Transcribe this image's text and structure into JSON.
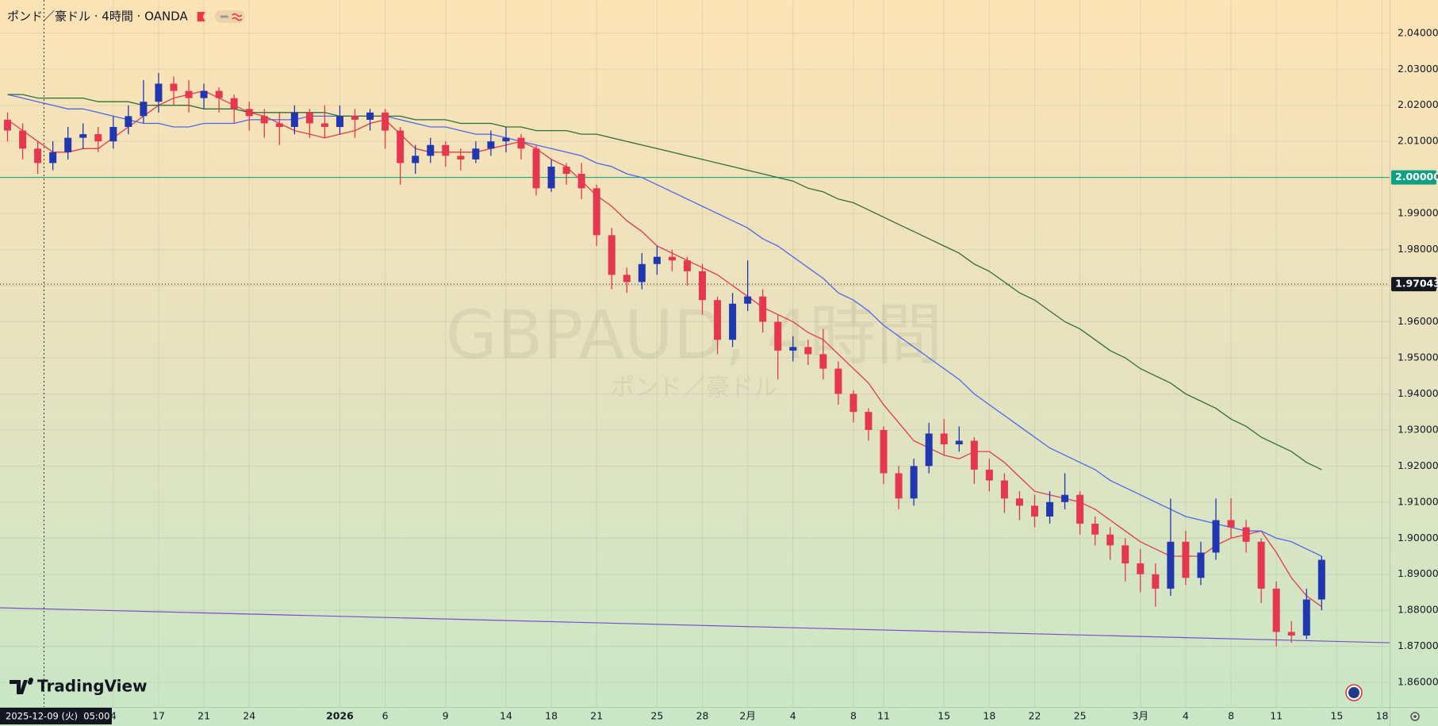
{
  "chart_data": {
    "type": "candlestick",
    "title": "ポンド／豪ドル · 4時間 · OANDA",
    "watermark": "GBPAUD, 4時間",
    "watermark_subtitle": "ポンド／豪ドル",
    "logo": "TradingView",
    "crosshair_label": "2025-12-09 (火)  05:00",
    "up_color": "#2137b0",
    "down_color": "#e5384f",
    "ylim": [
      1.8532,
      2.0492
    ],
    "yticks": [
      {
        "value": 1.86,
        "label": "1.86000"
      },
      {
        "value": 1.87,
        "label": "1.87000"
      },
      {
        "value": 1.88,
        "label": "1.88000"
      },
      {
        "value": 1.89,
        "label": "1.89000"
      },
      {
        "value": 1.9,
        "label": "1.90000"
      },
      {
        "value": 1.91,
        "label": "1.91000"
      },
      {
        "value": 1.92,
        "label": "1.92000"
      },
      {
        "value": 1.93,
        "label": "1.93000"
      },
      {
        "value": 1.94,
        "label": "1.94000"
      },
      {
        "value": 1.95,
        "label": "1.95000"
      },
      {
        "value": 1.96,
        "label": "1.96000"
      },
      {
        "value": 1.97,
        "label": "1.97000"
      },
      {
        "value": 1.98,
        "label": "1.98000"
      },
      {
        "value": 1.99,
        "label": "1.99000"
      },
      {
        "value": 2.0,
        "label": "2.00000"
      },
      {
        "value": 2.01,
        "label": "2.01000"
      },
      {
        "value": 2.02,
        "label": "2.02000"
      },
      {
        "value": 2.03,
        "label": "2.03000"
      },
      {
        "value": 2.04,
        "label": "2.04000"
      }
    ],
    "grid": true,
    "categories": [
      null,
      null,
      null,
      null,
      null,
      null,
      null,
      "4",
      null,
      null,
      "17",
      null,
      null,
      "21",
      null,
      null,
      "24",
      null,
      null,
      null,
      null,
      null,
      "2026",
      null,
      null,
      "6",
      null,
      null,
      null,
      "9",
      null,
      null,
      null,
      "14",
      null,
      null,
      "18",
      null,
      null,
      "21",
      null,
      null,
      null,
      "25",
      null,
      null,
      "28",
      null,
      null,
      "2月",
      null,
      null,
      "4",
      null,
      null,
      null,
      "8",
      null,
      "11",
      null,
      null,
      null,
      "15",
      null,
      null,
      "18",
      null,
      null,
      "22",
      null,
      null,
      "25",
      null,
      null,
      null,
      "3月",
      null,
      null,
      "4",
      null,
      null,
      "8",
      null,
      null,
      "11",
      null,
      null,
      null,
      "15",
      null,
      null,
      "18"
    ],
    "open": [
      2.016,
      2.013,
      2.008,
      2.004,
      2.007,
      2.011,
      2.012,
      2.01,
      2.014,
      2.017,
      2.021,
      2.026,
      2.024,
      2.022,
      2.024,
      2.022,
      2.019,
      2.017,
      2.015,
      2.014,
      2.018,
      2.015,
      2.014,
      2.017,
      2.016,
      2.018,
      2.013,
      2.004,
      2.006,
      2.009,
      2.006,
      2.005,
      2.008,
      2.01,
      2.011,
      2.008,
      1.997,
      2.003,
      2.001,
      1.997,
      1.984,
      1.973,
      1.971,
      1.976,
      1.978,
      1.977,
      1.974,
      1.966,
      1.955,
      1.965,
      1.967,
      1.96,
      1.952,
      1.953,
      1.951,
      1.947,
      1.94,
      1.935,
      1.93,
      1.918,
      1.911,
      1.92,
      1.929,
      1.926,
      1.927,
      1.919,
      1.916,
      1.911,
      1.909,
      1.906,
      1.91,
      1.912,
      1.904,
      1.901,
      1.898,
      1.893,
      1.89,
      1.886,
      1.899,
      1.889,
      1.896,
      1.905,
      1.903,
      1.899,
      1.886,
      1.874,
      1.873,
      1.883,
      null,
      null,
      null,
      null
    ],
    "high": [
      2.018,
      2.015,
      2.01,
      2.01,
      2.014,
      2.015,
      2.014,
      2.017,
      2.02,
      2.027,
      2.029,
      2.028,
      2.027,
      2.026,
      2.025,
      2.023,
      2.021,
      2.019,
      2.018,
      2.02,
      2.019,
      2.02,
      2.02,
      2.019,
      2.019,
      2.019,
      2.014,
      2.009,
      2.011,
      2.01,
      2.008,
      2.01,
      2.013,
      2.014,
      2.012,
      2.009,
      2.005,
      2.004,
      2.004,
      1.998,
      1.986,
      1.975,
      1.979,
      1.981,
      1.98,
      1.978,
      1.976,
      1.967,
      1.968,
      1.977,
      1.969,
      1.962,
      1.956,
      1.955,
      1.958,
      1.949,
      1.941,
      1.936,
      1.931,
      1.92,
      1.922,
      1.932,
      1.933,
      1.931,
      1.928,
      1.922,
      1.918,
      1.913,
      1.912,
      1.913,
      1.918,
      1.913,
      1.906,
      1.903,
      1.9,
      1.897,
      1.893,
      1.911,
      1.902,
      1.899,
      1.911,
      1.911,
      1.905,
      1.9,
      1.888,
      1.877,
      1.886,
      1.895,
      null,
      null,
      null,
      null
    ],
    "low": [
      2.01,
      2.005,
      2.001,
      2.002,
      2.005,
      2.008,
      2.007,
      2.008,
      2.012,
      2.015,
      2.018,
      2.02,
      2.018,
      2.019,
      2.018,
      2.015,
      2.013,
      2.011,
      2.009,
      2.012,
      2.011,
      2.011,
      2.012,
      2.011,
      2.013,
      2.008,
      1.998,
      2.001,
      2.004,
      2.003,
      2.002,
      2.004,
      2.006,
      2.007,
      2.005,
      1.995,
      1.996,
      1.998,
      1.994,
      1.981,
      1.969,
      1.968,
      1.969,
      1.973,
      1.974,
      1.97,
      1.962,
      1.951,
      1.953,
      1.963,
      1.957,
      1.944,
      1.949,
      1.948,
      1.944,
      1.937,
      1.932,
      1.927,
      1.915,
      1.908,
      1.909,
      1.918,
      1.923,
      1.924,
      1.915,
      1.913,
      1.907,
      1.905,
      1.903,
      1.904,
      1.908,
      1.901,
      1.898,
      1.894,
      1.888,
      1.885,
      1.881,
      1.884,
      1.887,
      1.887,
      1.894,
      1.9,
      1.896,
      1.882,
      1.87,
      1.871,
      1.872,
      1.88,
      null,
      null,
      null,
      null
    ],
    "close": [
      2.013,
      2.008,
      2.004,
      2.007,
      2.011,
      2.012,
      2.01,
      2.014,
      2.017,
      2.021,
      2.026,
      2.024,
      2.022,
      2.024,
      2.022,
      2.019,
      2.017,
      2.015,
      2.014,
      2.018,
      2.015,
      2.014,
      2.017,
      2.016,
      2.018,
      2.013,
      2.004,
      2.006,
      2.009,
      2.006,
      2.005,
      2.008,
      2.01,
      2.011,
      2.008,
      1.997,
      2.003,
      2.001,
      1.997,
      1.984,
      1.973,
      1.971,
      1.976,
      1.978,
      1.977,
      1.974,
      1.966,
      1.955,
      1.965,
      1.967,
      1.96,
      1.952,
      1.953,
      1.951,
      1.947,
      1.94,
      1.935,
      1.93,
      1.918,
      1.911,
      1.92,
      1.929,
      1.926,
      1.927,
      1.919,
      1.916,
      1.911,
      1.909,
      1.906,
      1.91,
      1.912,
      1.904,
      1.901,
      1.898,
      1.893,
      1.89,
      1.886,
      1.899,
      1.889,
      1.896,
      1.905,
      1.903,
      1.899,
      1.886,
      1.874,
      1.873,
      1.883,
      1.894,
      null,
      null,
      null,
      null
    ],
    "series": [
      {
        "color": "#e53950",
        "values": [
          2.016,
          2.013,
          2.01,
          2.007,
          2.007,
          2.008,
          2.008,
          2.011,
          2.014,
          2.017,
          2.02,
          2.022,
          2.023,
          2.024,
          2.022,
          2.02,
          2.018,
          2.017,
          2.015,
          2.013,
          2.012,
          2.011,
          2.012,
          2.013,
          2.015,
          2.016,
          2.012,
          2.008,
          2.007,
          2.007,
          2.007,
          2.007,
          2.008,
          2.009,
          2.01,
          2.008,
          2.005,
          2.003,
          1.999,
          1.995,
          1.992,
          1.988,
          1.985,
          1.981,
          1.979,
          1.977,
          1.975,
          1.973,
          1.97,
          1.967,
          1.964,
          1.962,
          1.96,
          1.957,
          1.955,
          1.951,
          1.947,
          1.943,
          1.937,
          1.932,
          1.927,
          1.925,
          1.923,
          1.922,
          1.924,
          1.924,
          1.921,
          1.917,
          1.913,
          1.912,
          1.911,
          1.91,
          1.908,
          1.905,
          1.902,
          1.899,
          1.897,
          1.895,
          1.895,
          1.895,
          1.898,
          1.9,
          1.901,
          1.902,
          1.896,
          1.889,
          1.884,
          1.881,
          null,
          null,
          null,
          null
        ]
      },
      {
        "color": "#4a67f0",
        "values": [
          2.023,
          2.022,
          2.021,
          2.02,
          2.019,
          2.019,
          2.018,
          2.017,
          2.016,
          2.015,
          2.015,
          2.014,
          2.014,
          2.015,
          2.015,
          2.015,
          2.016,
          2.016,
          2.016,
          2.016,
          2.017,
          2.017,
          2.017,
          2.017,
          2.017,
          2.017,
          2.016,
          2.015,
          2.014,
          2.014,
          2.013,
          2.012,
          2.012,
          2.011,
          2.01,
          2.009,
          2.008,
          2.007,
          2.006,
          2.004,
          2.003,
          2.001,
          2.0,
          1.998,
          1.996,
          1.994,
          1.992,
          1.99,
          1.988,
          1.986,
          1.983,
          1.981,
          1.978,
          1.975,
          1.972,
          1.968,
          1.966,
          1.963,
          1.959,
          1.956,
          1.953,
          1.95,
          1.947,
          1.944,
          1.94,
          1.937,
          1.934,
          1.931,
          1.928,
          1.925,
          1.923,
          1.921,
          1.919,
          1.916,
          1.914,
          1.912,
          1.91,
          1.908,
          1.906,
          1.905,
          1.904,
          1.903,
          1.902,
          1.902,
          1.9,
          1.899,
          1.897,
          1.895,
          null,
          null,
          null,
          null
        ]
      },
      {
        "color": "#2f6e36",
        "values": [
          2.023,
          2.023,
          2.022,
          2.022,
          2.022,
          2.022,
          2.021,
          2.021,
          2.021,
          2.02,
          2.02,
          2.02,
          2.02,
          2.019,
          2.019,
          2.019,
          2.018,
          2.018,
          2.018,
          2.018,
          2.018,
          2.018,
          2.017,
          2.017,
          2.017,
          2.017,
          2.017,
          2.016,
          2.016,
          2.016,
          2.015,
          2.015,
          2.015,
          2.014,
          2.014,
          2.013,
          2.013,
          2.013,
          2.012,
          2.012,
          2.011,
          2.01,
          2.009,
          2.008,
          2.007,
          2.006,
          2.005,
          2.004,
          2.003,
          2.002,
          2.001,
          2.0,
          1.999,
          1.997,
          1.996,
          1.994,
          1.993,
          1.991,
          1.989,
          1.987,
          1.985,
          1.983,
          1.981,
          1.979,
          1.976,
          1.974,
          1.971,
          1.968,
          1.966,
          1.963,
          1.96,
          1.958,
          1.955,
          1.952,
          1.95,
          1.947,
          1.945,
          1.943,
          1.94,
          1.938,
          1.936,
          1.933,
          1.931,
          1.928,
          1.926,
          1.924,
          1.921,
          1.919,
          null,
          null,
          null,
          null
        ]
      }
    ],
    "hlines": [
      {
        "value": 2.0,
        "label": "2.00000",
        "color": "#0e9f84",
        "style": "solid"
      },
      {
        "value": 1.97043,
        "label": "1.97043",
        "color": "#131722",
        "style": "dotted"
      }
    ],
    "trendline": {
      "color": "#7a4fc8",
      "values": [
        1.8807,
        1.871
      ]
    }
  }
}
